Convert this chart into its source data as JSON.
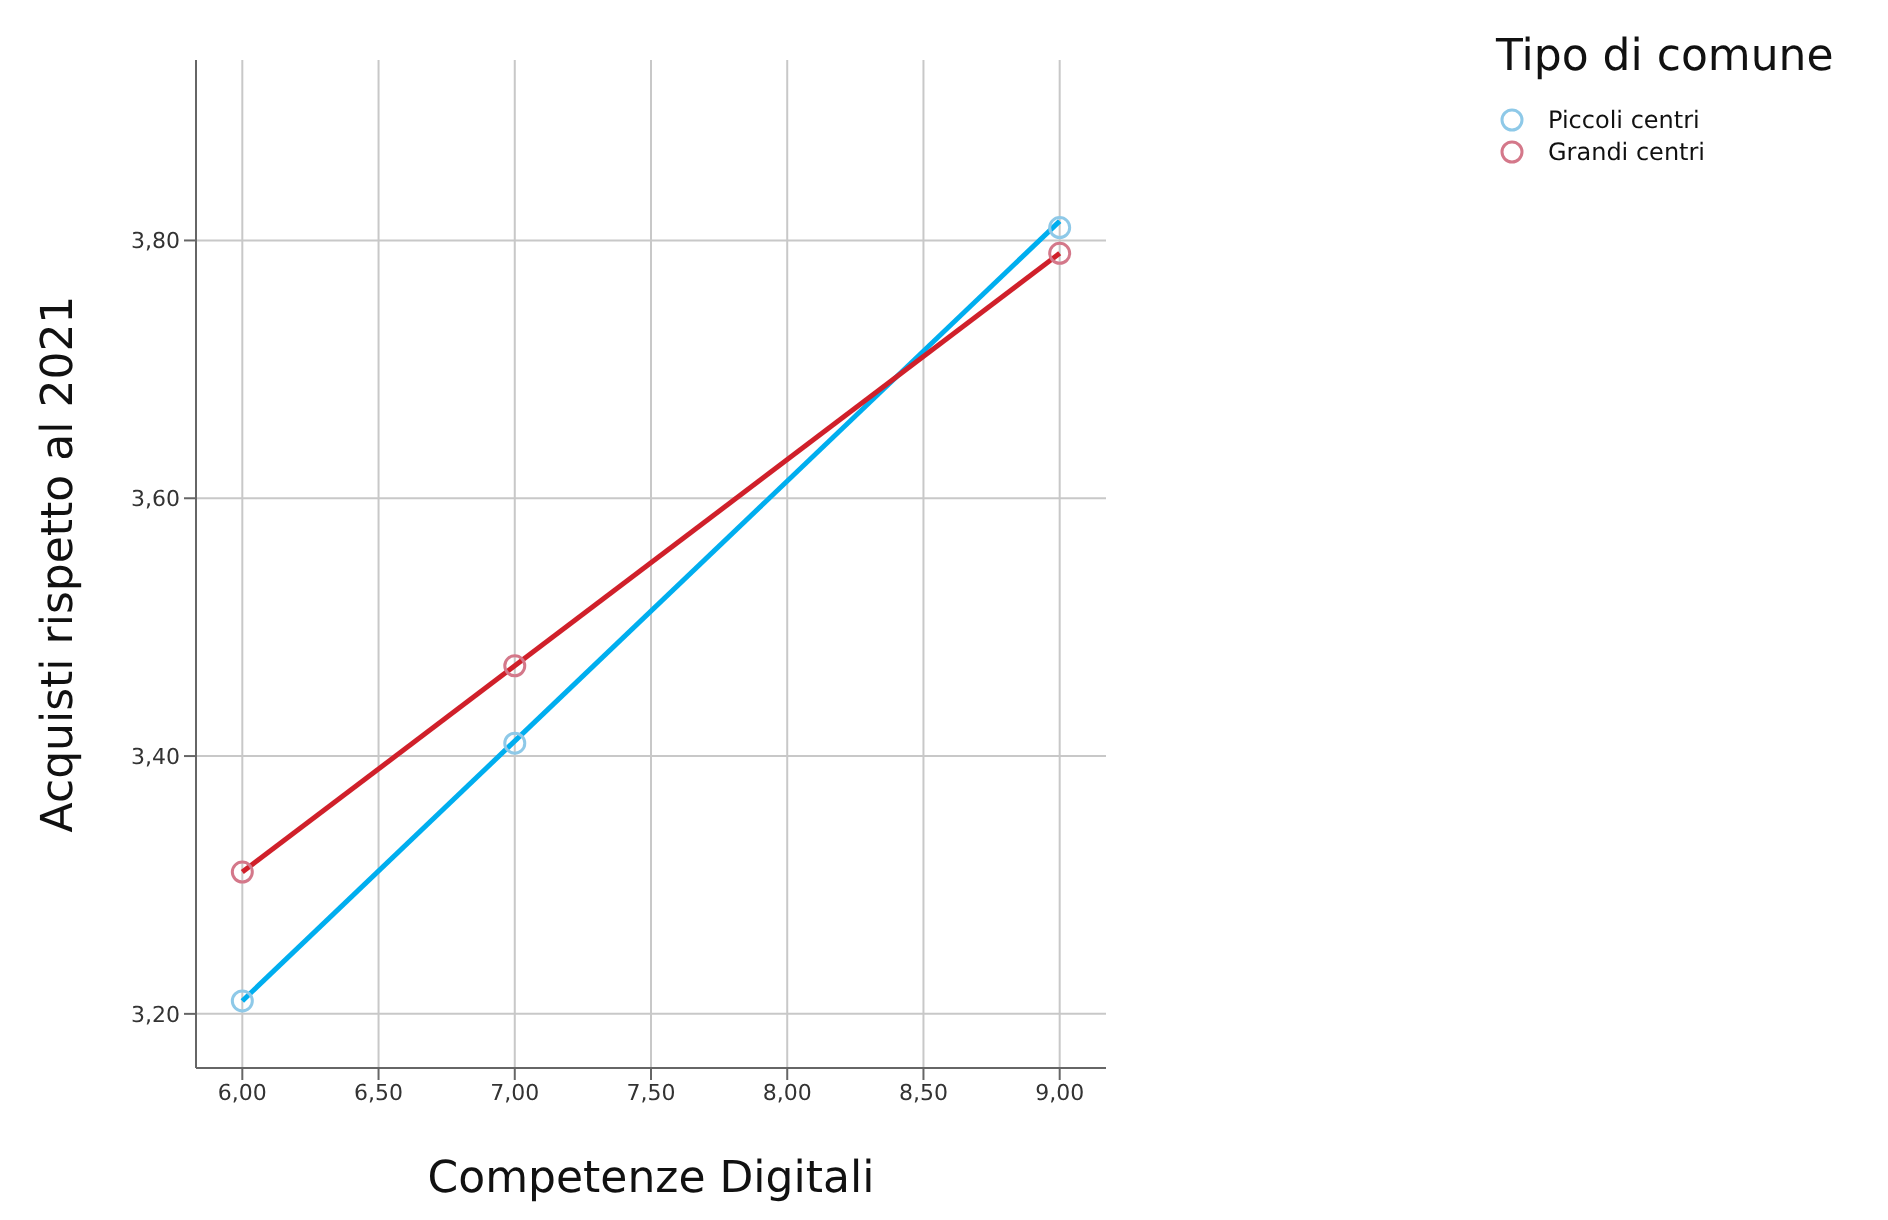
{
  "chart_data": {
    "type": "scatter",
    "xlabel": "Competenze Digitali",
    "ylabel": "Acquisti rispetto al 2021",
    "legend_title": "Tipo di comune",
    "series": [
      {
        "name": "Piccoli centri",
        "color": "#8ec9e8",
        "x": [
          6,
          7,
          9
        ],
        "values": [
          3.21,
          3.41,
          3.81
        ]
      },
      {
        "name": "Grandi centri",
        "color": "#d4788a",
        "x": [
          6,
          7,
          9
        ],
        "values": [
          3.31,
          3.47,
          3.79
        ]
      },
      {
        "type": "line",
        "color": "#00aeef",
        "marker": "none",
        "x": [
          6,
          9
        ],
        "values": [
          3.21,
          3.815
        ]
      },
      {
        "type": "line",
        "color": "#d0202a",
        "marker": "none",
        "x": [
          6,
          9
        ],
        "values": [
          3.31,
          3.79
        ]
      }
    ],
    "xlim": [
      5.83,
      9.17
    ],
    "xticks": [
      {
        "value": 6,
        "label": "6,00"
      },
      {
        "value": 6.5,
        "label": "6,50"
      },
      {
        "value": 7,
        "label": "7,00"
      },
      {
        "value": 7.5,
        "label": "7,50"
      },
      {
        "value": 8,
        "label": "8,00"
      },
      {
        "value": 8.5,
        "label": "8,50"
      },
      {
        "value": 9,
        "label": "9,00"
      }
    ],
    "ylim": [
      3.158,
      3.94
    ],
    "yticks": [
      {
        "value": 3.2,
        "label": "3,20"
      },
      {
        "value": 3.4,
        "label": "3,40"
      },
      {
        "value": 3.6,
        "label": "3,60"
      },
      {
        "value": 3.8,
        "label": "3,80"
      }
    ],
    "grid": true,
    "legend": "top right",
    "marker": "circle",
    "line_style": "solid"
  }
}
